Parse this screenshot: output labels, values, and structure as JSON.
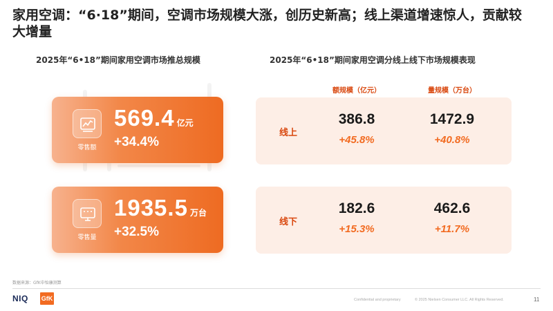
{
  "title": "家用空调：“6·18”期间，空调市场规模大涨，创历史新高；线上渠道增速惊人，贡献较大增量",
  "left_panel": {
    "subtitle": "2025年“6•18”期间家用空调市场推总规模",
    "cards": [
      {
        "value": "569.4",
        "unit": "亿元",
        "growth": "+34.4%",
        "caption": "零售额",
        "icon": "line-chart-icon"
      },
      {
        "value": "1935.5",
        "unit": "万台",
        "growth": "+32.5%",
        "caption": "零售量",
        "icon": "presentation-board-icon"
      }
    ]
  },
  "right_panel": {
    "subtitle": "2025年“6•18”期间家用空调分线上线下市场规模表现",
    "col_headers": [
      "额规模（亿元）",
      "量规模（万台）"
    ],
    "rows": [
      {
        "label": "线上",
        "amount": "386.8",
        "amount_growth": "+45.8%",
        "volume": "1472.9",
        "volume_growth": "+40.8%"
      },
      {
        "label": "线下",
        "amount": "182.6",
        "amount_growth": "+15.3%",
        "volume": "462.6",
        "volume_growth": "+11.7%"
      }
    ]
  },
  "footer": {
    "source": "数据来源：GfK中怡康测算",
    "logo_niq": "NIQ",
    "logo_gfk": "GfK",
    "confidential": "Confidential and proprietary",
    "copyright": "© 2025 Nielsen Consumer LLC. All Rights Reserved.",
    "page": "11"
  },
  "colors": {
    "accent": "#f26b21",
    "label": "#d9480f",
    "card_bg": "#fdeee6"
  }
}
